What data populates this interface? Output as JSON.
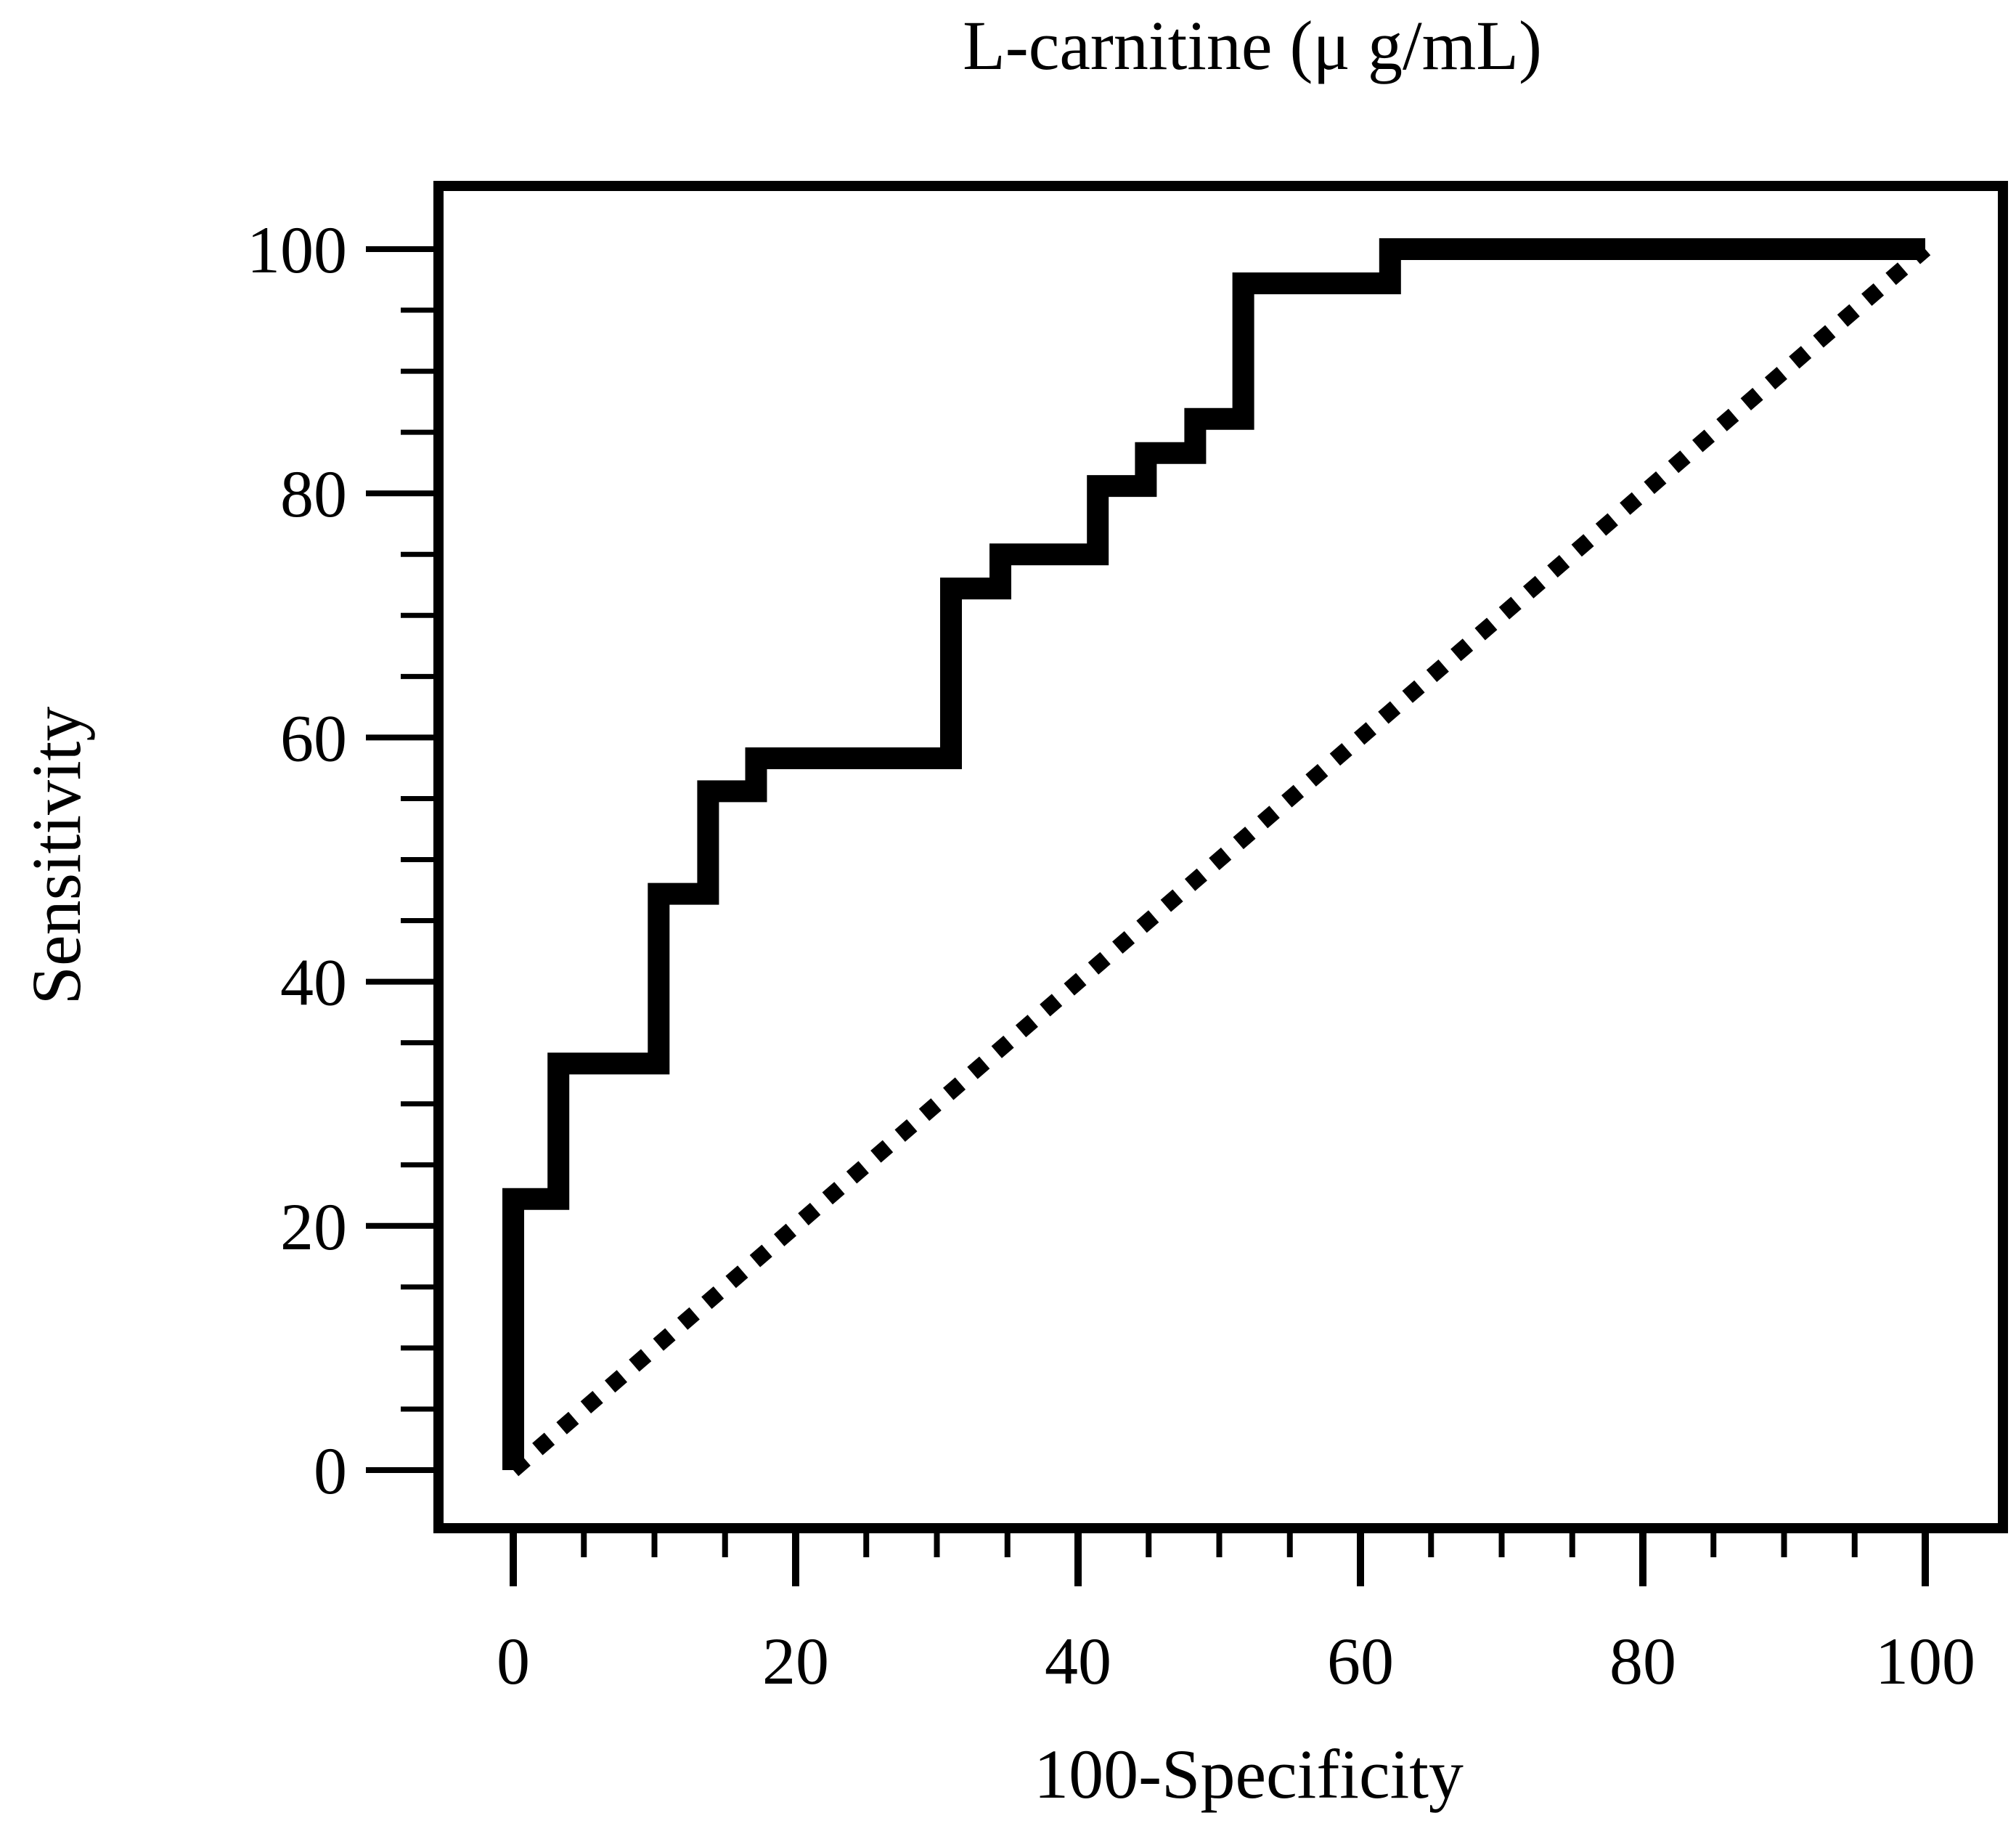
{
  "chart_data": {
    "type": "line",
    "title": "L-carnitine (μ g/mL)",
    "xlabel": "100-Specificity",
    "ylabel": "Sensitivity",
    "xlim": [
      0,
      100
    ],
    "ylim": [
      0,
      100
    ],
    "x_ticks": [
      "0",
      "20",
      "40",
      "60",
      "80",
      "100"
    ],
    "y_ticks": [
      "0",
      "20",
      "40",
      "60",
      "80",
      "100"
    ],
    "x_ticks_major": [
      0,
      20,
      40,
      60,
      80,
      100
    ],
    "y_ticks_major": [
      0,
      20,
      40,
      60,
      80,
      100
    ],
    "x_ticks_minor": [
      5,
      10,
      15,
      25,
      30,
      35,
      45,
      50,
      55,
      65,
      70,
      75,
      85,
      90,
      95
    ],
    "y_ticks_minor": [
      5,
      10,
      15,
      25,
      30,
      35,
      45,
      50,
      55,
      65,
      70,
      75,
      85,
      90,
      95
    ],
    "grid": false,
    "series": [
      {
        "style": "solid-step",
        "color": "#000000",
        "x": [
          0,
          0,
          3.2,
          3.2,
          10.3,
          10.3,
          13.8,
          13.8,
          17.2,
          17.2,
          31,
          31,
          34.5,
          34.5,
          41.4,
          41.4,
          44.8,
          44.8,
          48.3,
          48.3,
          51.7,
          51.7,
          62.1,
          62.1,
          100
        ],
        "y": [
          0,
          22.2,
          22.2,
          33.3,
          33.3,
          47.2,
          47.2,
          55.6,
          55.6,
          58.3,
          58.3,
          72.2,
          72.2,
          75,
          75,
          80.6,
          80.6,
          83.3,
          83.3,
          86.1,
          86.1,
          97.2,
          97.2,
          100,
          100
        ]
      },
      {
        "style": "dotted-diagonal",
        "color": "#000000",
        "x": [
          0,
          100
        ],
        "y": [
          0,
          100
        ]
      }
    ]
  }
}
